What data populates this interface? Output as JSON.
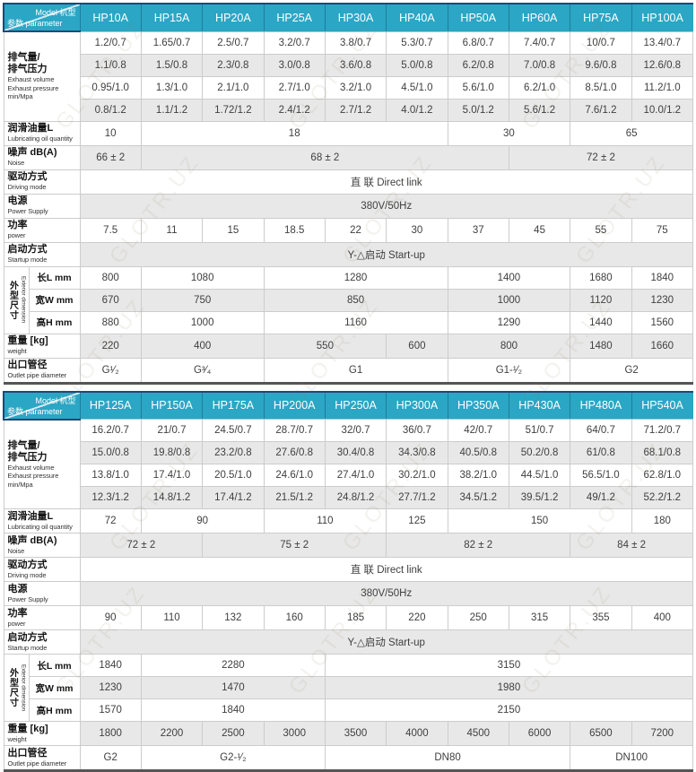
{
  "watermark": "GLOTR.UZ",
  "colors": {
    "header_teal": "#2ba6c5",
    "header_navy": "#1c4a74",
    "stripe_gray": "#e8e8e8",
    "border_gray": "#cccccc",
    "value_text": "#3f3f3f"
  },
  "diag": {
    "top": "Model 机型",
    "bottom": "参数 parameter"
  },
  "tables": [
    {
      "columns": [
        "HP10A",
        "HP15A",
        "HP20A",
        "HP25A",
        "HP30A",
        "HP40A",
        "HP50A",
        "HP60A",
        "HP75A",
        "HP100A"
      ],
      "rows": [
        {
          "t": "group4",
          "zh": [
            "排气量/",
            "排气压力"
          ],
          "en": [
            "Exhaust volume",
            "Exhaust pressure",
            "min/Mpa"
          ],
          "rows": [
            [
              "1.2/0.7",
              "1.65/0.7",
              "2.5/0.7",
              "3.2/0.7",
              "3.8/0.7",
              "5.3/0.7",
              "6.8/0.7",
              "7.4/0.7",
              "10/0.7",
              "13.4/0.7"
            ],
            [
              "1.1/0.8",
              "1.5/0.8",
              "2.3/0.8",
              "3.0/0.8",
              "3.6/0.8",
              "5.0/0.8",
              "6.2/0.8",
              "7.0/0.8",
              "9.6/0.8",
              "12.6/0.8"
            ],
            [
              "0.95/1.0",
              "1.3/1.0",
              "2.1/1.0",
              "2.7/1.0",
              "3.2/1.0",
              "4.5/1.0",
              "5.6/1.0",
              "6.2/1.0",
              "8.5/1.0",
              "11.2/1.0"
            ],
            [
              "0.8/1.2",
              "1.1/1.2",
              "1.72/1.2",
              "2.4/1.2",
              "2.7/1.2",
              "4.0/1.2",
              "5.0/1.2",
              "5.6/1.2",
              "7.6/1.2",
              "10.0/1.2"
            ]
          ]
        },
        {
          "t": "r",
          "zh": "润滑油量L",
          "en": "Lubricating oil quantity",
          "cells": [
            [
              "10",
              1
            ],
            [
              "18",
              5
            ],
            [
              "30",
              2
            ],
            [
              "65",
              2
            ]
          ]
        },
        {
          "t": "r",
          "zh": "噪声 dB(A)",
          "en": "Noise",
          "cells": [
            [
              "66 ± 2",
              1
            ],
            [
              "68 ± 2",
              6
            ],
            [
              "72 ± 2",
              3
            ]
          ]
        },
        {
          "t": "r",
          "zh": "驱动方式",
          "en": "Driving mode",
          "cells": [
            [
              "直 联  Direct link",
              10
            ]
          ]
        },
        {
          "t": "r",
          "zh": "电源",
          "en": "Power Supply",
          "cells": [
            [
              "380V/50Hz",
              10
            ]
          ]
        },
        {
          "t": "r",
          "zh": "功率",
          "en": "power",
          "cells": [
            "7.5",
            "11",
            "15",
            "18.5",
            "22",
            "30",
            "37",
            "45",
            "55",
            "75"
          ]
        },
        {
          "t": "r",
          "zh": "启动方式",
          "en": "Startup mode",
          "cells": [
            [
              "Y-△启动  Start-up",
              10
            ]
          ]
        },
        {
          "t": "dims",
          "side_zh": "外型尺寸",
          "side_en": "Exterior dimension",
          "subs": [
            {
              "l": "长L mm",
              "cells": [
                [
                  "800",
                  1
                ],
                [
                  "1080",
                  2
                ],
                [
                  "1280",
                  3
                ],
                [
                  "1400",
                  2
                ],
                [
                  "1680",
                  1
                ],
                [
                  "1840",
                  1
                ]
              ]
            },
            {
              "l": "宽W mm",
              "cells": [
                [
                  "670",
                  1
                ],
                [
                  "750",
                  2
                ],
                [
                  "850",
                  3
                ],
                [
                  "1000",
                  2
                ],
                [
                  "1120",
                  1
                ],
                [
                  "1230",
                  1
                ]
              ]
            },
            {
              "l": "高H mm",
              "cells": [
                [
                  "880",
                  1
                ],
                [
                  "1000",
                  2
                ],
                [
                  "1160",
                  3
                ],
                [
                  "1290",
                  2
                ],
                [
                  "1440",
                  1
                ],
                [
                  "1560",
                  1
                ]
              ]
            }
          ]
        },
        {
          "t": "r",
          "zh": "重量 [kg]",
          "en": "weight",
          "cells": [
            [
              "220",
              1
            ],
            [
              "400",
              2
            ],
            [
              "550",
              2
            ],
            [
              "600",
              1
            ],
            [
              "800",
              2
            ],
            [
              "1480",
              1
            ],
            [
              "1660",
              1
            ]
          ]
        },
        {
          "t": "r",
          "zh": "出口管径",
          "en": "Outlet pipe diameter",
          "cells": [
            [
              "G¹⁄₂",
              1
            ],
            [
              "G³⁄₄",
              2
            ],
            [
              "G1",
              3
            ],
            [
              "G1-¹⁄₂",
              2
            ],
            [
              "G2",
              2
            ]
          ]
        }
      ]
    },
    {
      "columns": [
        "HP125A",
        "HP150A",
        "HP175A",
        "HP200A",
        "HP250A",
        "HP300A",
        "HP350A",
        "HP430A",
        "HP480A",
        "HP540A"
      ],
      "rows": [
        {
          "t": "group4",
          "zh": [
            "排气量/",
            "排气压力"
          ],
          "en": [
            "Exhaust volume",
            "Exhaust pressure",
            "min/Mpa"
          ],
          "rows": [
            [
              "16.2/0.7",
              "21/0.7",
              "24.5/0.7",
              "28.7/0.7",
              "32/0.7",
              "36/0.7",
              "42/0.7",
              "51/0.7",
              "64/0.7",
              "71.2/0.7"
            ],
            [
              "15.0/0.8",
              "19.8/0.8",
              "23.2/0.8",
              "27.6/0.8",
              "30.4/0.8",
              "34.3/0.8",
              "40.5/0.8",
              "50.2/0.8",
              "61/0.8",
              "68.1/0.8"
            ],
            [
              "13.8/1.0",
              "17.4/1.0",
              "20.5/1.0",
              "24.6/1.0",
              "27.4/1.0",
              "30.2/1.0",
              "38.2/1.0",
              "44.5/1.0",
              "56.5/1.0",
              "62.8/1.0"
            ],
            [
              "12.3/1.2",
              "14.8/1.2",
              "17.4/1.2",
              "21.5/1.2",
              "24.8/1.2",
              "27.7/1.2",
              "34.5/1.2",
              "39.5/1.2",
              "49/1.2",
              "52.2/1.2"
            ]
          ]
        },
        {
          "t": "r",
          "zh": "润滑油量L",
          "en": "Lubricating oil quantity",
          "cells": [
            [
              "72",
              1
            ],
            [
              "90",
              2
            ],
            [
              "110",
              2
            ],
            [
              "125",
              1
            ],
            [
              "150",
              3
            ],
            [
              "180",
              1
            ]
          ]
        },
        {
          "t": "r",
          "zh": "噪声 dB(A)",
          "en": "Noise",
          "cells": [
            [
              "72 ± 2",
              2
            ],
            [
              "75 ± 2",
              3
            ],
            [
              "82 ± 2",
              3
            ],
            [
              "84 ± 2",
              2
            ]
          ]
        },
        {
          "t": "r",
          "zh": "驱动方式",
          "en": "Driving mode",
          "cells": [
            [
              "直 联  Direct link",
              10
            ]
          ]
        },
        {
          "t": "r",
          "zh": "电源",
          "en": "Power Supply",
          "cells": [
            [
              "380V/50Hz",
              10
            ]
          ]
        },
        {
          "t": "r",
          "zh": "功率",
          "en": "power",
          "cells": [
            "90",
            "110",
            "132",
            "160",
            "185",
            "220",
            "250",
            "315",
            "355",
            "400"
          ]
        },
        {
          "t": "r",
          "zh": "启动方式",
          "en": "Startup mode",
          "cells": [
            [
              "Y-△启动  Start-up",
              10
            ]
          ]
        },
        {
          "t": "dims",
          "side_zh": "外型尺寸",
          "side_en": "Exterior dimension",
          "subs": [
            {
              "l": "长L mm",
              "cells": [
                [
                  "1840",
                  1
                ],
                [
                  "2280",
                  3
                ],
                [
                  "3150",
                  6
                ]
              ]
            },
            {
              "l": "宽W mm",
              "cells": [
                [
                  "1230",
                  1
                ],
                [
                  "1470",
                  3
                ],
                [
                  "1980",
                  6
                ]
              ]
            },
            {
              "l": "高H mm",
              "cells": [
                [
                  "1570",
                  1
                ],
                [
                  "1840",
                  3
                ],
                [
                  "2150",
                  6
                ]
              ]
            }
          ]
        },
        {
          "t": "r",
          "zh": "重量 [kg]",
          "en": "weight",
          "cells": [
            "1800",
            "2200",
            "2500",
            "3000",
            "3500",
            "4000",
            "4500",
            "6000",
            "6500",
            "7200"
          ]
        },
        {
          "t": "r",
          "zh": "出口管径",
          "en": "Outlet pipe diameter",
          "cells": [
            [
              "G2",
              1
            ],
            [
              "G2-¹⁄₂",
              3
            ],
            [
              "DN80",
              4
            ],
            [
              "DN100",
              2
            ]
          ]
        }
      ]
    }
  ]
}
